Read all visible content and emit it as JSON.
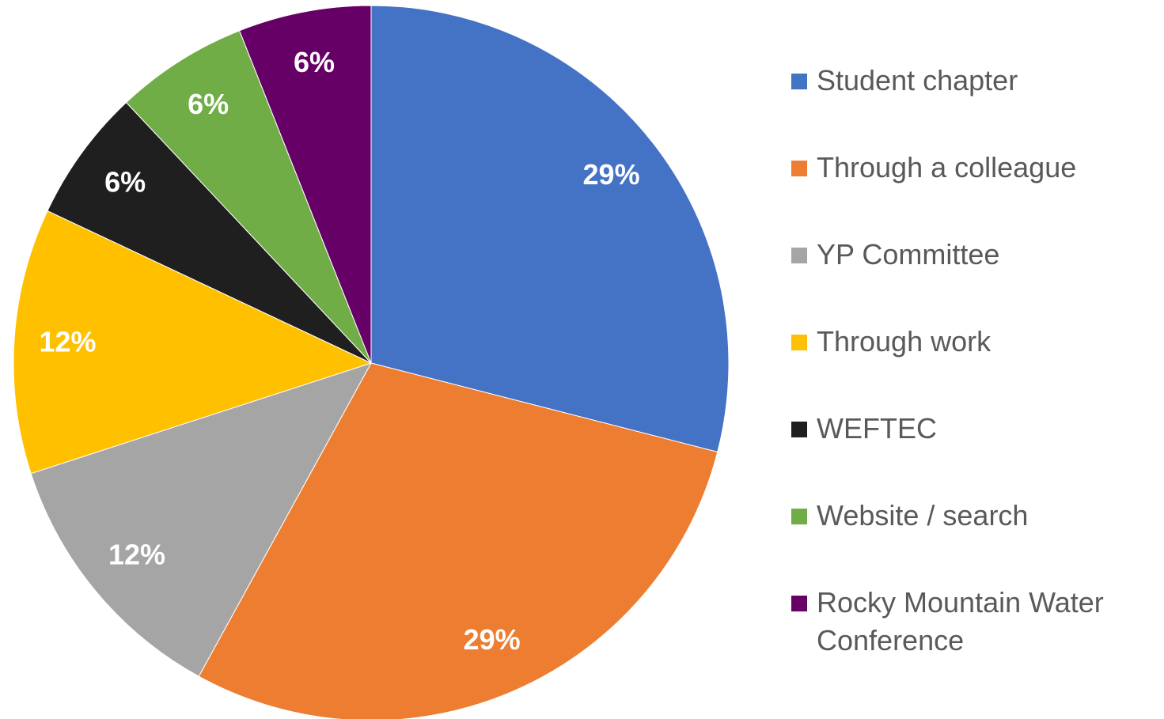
{
  "chart_data": {
    "type": "pie",
    "categories": [
      "Student chapter",
      "Through a colleague",
      "YP Committee",
      "Through work",
      "WEFTEC",
      "Website / search",
      "Rocky Mountain Water Conference"
    ],
    "values": [
      29,
      29,
      12,
      12,
      6,
      6,
      6
    ],
    "value_labels": [
      "29%",
      "29%",
      "12%",
      "12%",
      "6%",
      "6%",
      "6%"
    ],
    "colors": [
      "#4472c4",
      "#ed7d31",
      "#a5a5a5",
      "#ffc000",
      "#1f1f1f",
      "#70ad47",
      "#660066"
    ],
    "legend": "right"
  }
}
